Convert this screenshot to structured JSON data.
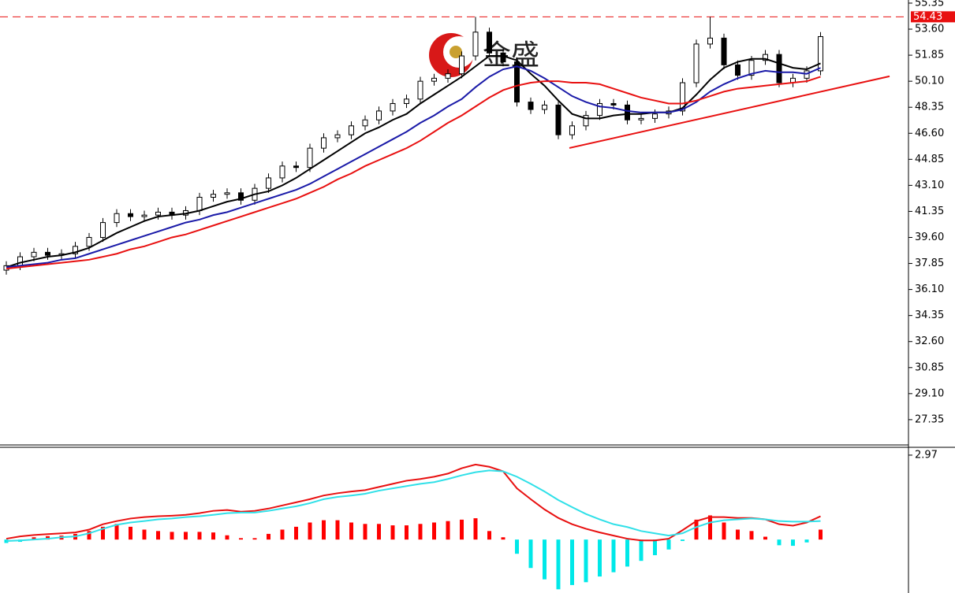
{
  "chart_data": [
    {
      "type": "candlestick",
      "open": [
        37.4,
        37.7,
        38.3,
        38.6,
        38.4,
        38.5,
        39.0,
        39.6,
        40.6,
        41.2,
        41.0,
        41.1,
        41.3,
        41.1,
        41.4,
        42.3,
        42.5,
        42.6,
        42.1,
        42.9,
        43.6,
        44.4,
        44.3,
        45.6,
        46.3,
        46.5,
        47.1,
        47.5,
        48.1,
        48.6,
        48.9,
        50.1,
        50.3,
        50.6,
        51.8,
        53.4,
        52.0,
        51.4,
        48.7,
        48.2,
        48.5,
        46.5,
        47.1,
        47.8,
        48.6,
        48.5,
        47.5,
        47.6,
        47.9,
        48.1,
        50.0,
        52.6,
        53.0,
        51.2,
        50.5,
        51.5,
        51.9,
        50.0,
        50.3,
        50.8
      ],
      "high": [
        38.0,
        38.6,
        38.9,
        38.9,
        38.8,
        39.3,
        39.9,
        40.9,
        41.5,
        41.5,
        41.4,
        41.6,
        41.6,
        41.7,
        42.6,
        42.8,
        42.9,
        42.9,
        43.2,
        43.9,
        44.7,
        44.7,
        45.9,
        46.6,
        46.8,
        47.4,
        47.8,
        48.4,
        48.9,
        49.2,
        50.4,
        50.6,
        50.9,
        52.1,
        54.43,
        53.7,
        52.3,
        51.7,
        49.0,
        48.8,
        48.8,
        47.4,
        48.1,
        48.9,
        48.9,
        48.8,
        47.9,
        48.2,
        48.4,
        50.3,
        52.9,
        54.43,
        53.3,
        51.5,
        51.8,
        52.2,
        52.2,
        50.6,
        51.1,
        53.4
      ],
      "low": [
        37.1,
        37.4,
        38.0,
        38.1,
        38.1,
        38.2,
        38.7,
        39.3,
        40.3,
        40.7,
        40.7,
        40.8,
        40.8,
        40.8,
        41.1,
        42.0,
        42.2,
        41.8,
        41.8,
        42.6,
        43.3,
        44.0,
        44.0,
        45.3,
        46.0,
        46.2,
        46.8,
        47.2,
        47.8,
        48.3,
        48.6,
        49.8,
        50.0,
        50.3,
        51.5,
        51.7,
        51.1,
        48.4,
        47.9,
        47.9,
        46.2,
        46.2,
        46.8,
        47.5,
        48.2,
        47.2,
        47.2,
        47.3,
        47.6,
        47.8,
        49.7,
        52.3,
        50.9,
        50.2,
        50.2,
        51.2,
        49.7,
        49.7,
        50.0,
        50.5
      ],
      "close": [
        37.7,
        38.3,
        38.6,
        38.4,
        38.5,
        39.0,
        39.6,
        40.6,
        41.2,
        41.0,
        41.1,
        41.3,
        41.1,
        41.4,
        42.3,
        42.5,
        42.6,
        42.1,
        42.9,
        43.6,
        44.4,
        44.3,
        45.6,
        46.3,
        46.5,
        47.1,
        47.5,
        48.1,
        48.6,
        48.9,
        50.1,
        50.3,
        50.6,
        51.8,
        53.4,
        52.0,
        51.4,
        48.7,
        48.2,
        48.5,
        46.5,
        47.1,
        47.8,
        48.6,
        48.5,
        47.5,
        47.6,
        47.9,
        48.1,
        50.0,
        52.6,
        53.0,
        51.2,
        50.5,
        51.5,
        51.9,
        50.0,
        50.3,
        50.8,
        53.1
      ],
      "up_color": "#ffffff",
      "down_color": "#000000",
      "series": [
        {
          "color": "#000000",
          "values": [
            37.6,
            37.9,
            38.1,
            38.3,
            38.4,
            38.6,
            38.9,
            39.4,
            39.9,
            40.3,
            40.7,
            41.0,
            41.1,
            41.2,
            41.4,
            41.7,
            42.0,
            42.2,
            42.5,
            42.7,
            43.1,
            43.6,
            44.2,
            44.8,
            45.4,
            46.0,
            46.6,
            47.0,
            47.5,
            47.9,
            48.6,
            49.2,
            49.8,
            50.4,
            51.1,
            51.8,
            51.8,
            51.5,
            50.6,
            49.8,
            48.8,
            47.9,
            47.6,
            47.6,
            47.8,
            47.9,
            47.9,
            48.0,
            48.0,
            48.3,
            49.2,
            50.2,
            51.0,
            51.4,
            51.6,
            51.6,
            51.3,
            51.0,
            50.9,
            51.3
          ]
        },
        {
          "color": "#1a1aa8",
          "values": [
            37.6,
            37.7,
            37.8,
            37.9,
            38.1,
            38.2,
            38.5,
            38.8,
            39.1,
            39.4,
            39.7,
            40.0,
            40.3,
            40.6,
            40.8,
            41.1,
            41.3,
            41.6,
            41.9,
            42.2,
            42.5,
            42.8,
            43.2,
            43.7,
            44.2,
            44.7,
            45.2,
            45.7,
            46.2,
            46.7,
            47.3,
            47.8,
            48.4,
            48.9,
            49.7,
            50.4,
            50.9,
            51.1,
            50.8,
            50.3,
            49.7,
            49.1,
            48.7,
            48.4,
            48.3,
            48.1,
            48.0,
            48.0,
            48.0,
            48.2,
            48.7,
            49.4,
            49.9,
            50.3,
            50.6,
            50.8,
            50.7,
            50.7,
            50.6,
            51.0
          ]
        },
        {
          "color": "#e81010",
          "values": [
            37.5,
            37.6,
            37.7,
            37.8,
            37.9,
            38.0,
            38.1,
            38.3,
            38.5,
            38.8,
            39.0,
            39.3,
            39.6,
            39.8,
            40.1,
            40.4,
            40.7,
            41.0,
            41.3,
            41.6,
            41.9,
            42.2,
            42.6,
            43.0,
            43.5,
            43.9,
            44.4,
            44.8,
            45.2,
            45.6,
            46.1,
            46.7,
            47.3,
            47.8,
            48.4,
            49.0,
            49.5,
            49.8,
            50.0,
            50.1,
            50.1,
            50.0,
            50.0,
            49.9,
            49.6,
            49.3,
            49.0,
            48.8,
            48.6,
            48.6,
            48.8,
            49.1,
            49.4,
            49.6,
            49.7,
            49.8,
            49.9,
            50.0,
            50.1,
            50.4
          ]
        }
      ],
      "trendline": {
        "x": [
          40.8,
          64
        ],
        "y": [
          45.61,
          50.43
        ],
        "color": "#e81010"
      },
      "current_price": 54.43,
      "current_price_color": "#e81010",
      "watermark": "金盛",
      "ylim": [
        25.65,
        55.56
      ],
      "yticks": [
        55.35,
        {
          "value": 53.6,
          "label": "53.60"
        },
        51.85,
        {
          "value": 50.1,
          "label": "50.10"
        },
        48.35,
        {
          "value": 46.6,
          "label": "46.60"
        },
        44.85,
        {
          "value": 43.1,
          "label": "43.10"
        },
        41.35,
        {
          "value": 39.6,
          "label": "39.60"
        },
        37.85,
        {
          "value": 36.1,
          "label": "36.10"
        },
        34.35,
        {
          "value": 32.6,
          "label": "32.60"
        },
        30.85,
        {
          "value": 29.1,
          "label": "29.10"
        },
        27.35
      ]
    },
    {
      "type": "macd",
      "histogram": [
        -0.12,
        -0.08,
        0.08,
        0.12,
        0.14,
        0.2,
        0.3,
        0.45,
        0.55,
        0.45,
        0.35,
        0.3,
        0.27,
        0.27,
        0.27,
        0.25,
        0.15,
        0.05,
        0.05,
        0.2,
        0.35,
        0.45,
        0.6,
        0.68,
        0.68,
        0.6,
        0.55,
        0.55,
        0.5,
        0.5,
        0.55,
        0.6,
        0.65,
        0.7,
        0.75,
        0.3,
        0.08,
        -0.5,
        -1.0,
        -1.4,
        -1.75,
        -1.6,
        -1.5,
        -1.3,
        -1.15,
        -0.95,
        -0.75,
        -0.55,
        -0.35,
        -0.05,
        0.7,
        0.85,
        0.6,
        0.35,
        0.3,
        0.1,
        -0.2,
        -0.22,
        -0.1,
        0.35
      ],
      "positive_color": "#ff0000",
      "negative_color": "#00e8e8",
      "series": [
        {
          "color": "#e81010",
          "values": [
            0.03,
            0.11,
            0.16,
            0.19,
            0.22,
            0.25,
            0.35,
            0.54,
            0.65,
            0.74,
            0.79,
            0.82,
            0.84,
            0.87,
            0.93,
            1.01,
            1.04,
            0.98,
            1.01,
            1.09,
            1.2,
            1.31,
            1.42,
            1.55,
            1.63,
            1.69,
            1.74,
            1.85,
            1.96,
            2.07,
            2.13,
            2.21,
            2.32,
            2.51,
            2.64,
            2.56,
            2.4,
            1.8,
            1.42,
            1.06,
            0.76,
            0.54,
            0.38,
            0.25,
            0.14,
            0.03,
            -0.03,
            -0.03,
            0.03,
            0.33,
            0.65,
            0.79,
            0.79,
            0.76,
            0.76,
            0.71,
            0.54,
            0.49,
            0.6,
            0.82
          ]
        },
        {
          "color": "#30e0e8",
          "values": [
            -0.05,
            -0.03,
            0,
            0.03,
            0.08,
            0.11,
            0.22,
            0.38,
            0.52,
            0.6,
            0.65,
            0.71,
            0.74,
            0.79,
            0.82,
            0.87,
            0.93,
            0.95,
            0.95,
            1.01,
            1.09,
            1.17,
            1.28,
            1.42,
            1.5,
            1.55,
            1.61,
            1.72,
            1.8,
            1.88,
            1.96,
            2.02,
            2.13,
            2.26,
            2.37,
            2.43,
            2.4,
            2.21,
            1.96,
            1.69,
            1.39,
            1.14,
            0.9,
            0.71,
            0.54,
            0.44,
            0.3,
            0.22,
            0.14,
            0.22,
            0.44,
            0.6,
            0.68,
            0.71,
            0.74,
            0.71,
            0.65,
            0.63,
            0.63,
            0.65
          ]
        }
      ],
      "ylim": [
        -1.88,
        3.19
      ],
      "yticks": [
        2.97
      ]
    }
  ]
}
